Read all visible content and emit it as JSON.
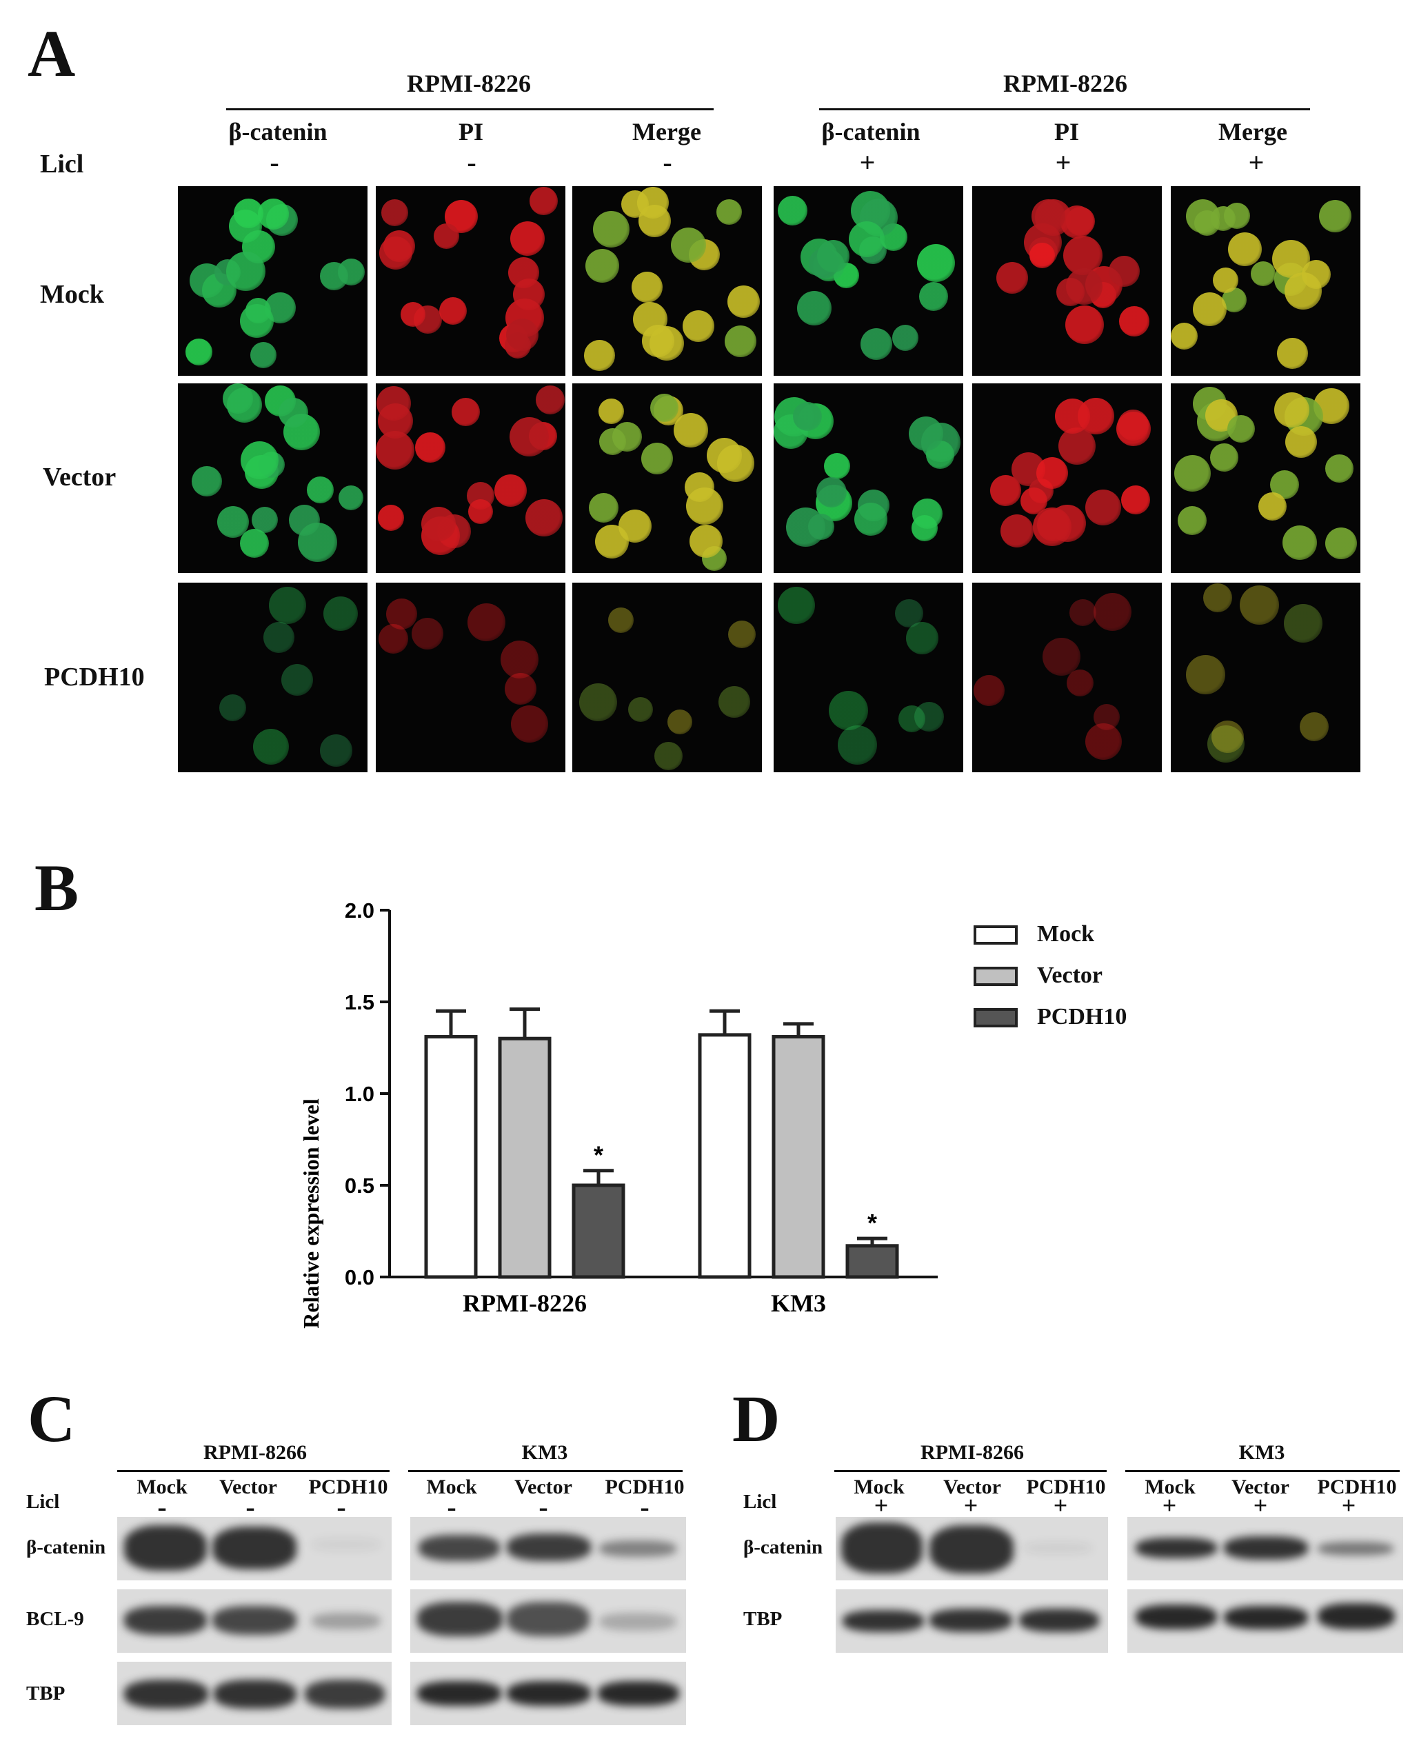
{
  "panelA": {
    "letter": "A",
    "group_left": "RPMI-8226",
    "group_right": "RPMI-8226",
    "columns": [
      "β-catenin",
      "PI",
      "Merge",
      "β-catenin",
      "PI",
      "Merge"
    ],
    "licl_label": "Licl",
    "licl_signs": [
      "-",
      "-",
      "-",
      "+",
      "+",
      "+"
    ],
    "rows": [
      "Mock",
      "Vector",
      "PCDH10"
    ]
  },
  "panelB": {
    "letter": "B",
    "legend": [
      "Mock",
      "Vector",
      "PCDH10"
    ],
    "significance_marker": "*"
  },
  "chart_data": {
    "type": "bar",
    "ylabel": "Relative expression level",
    "xlabel": "",
    "ylim": [
      0,
      2.0
    ],
    "yticks": [
      "0.0",
      "0.5",
      "1.0",
      "1.5",
      "2.0"
    ],
    "categories": [
      "RPMI-8226",
      "KM3"
    ],
    "series": [
      {
        "name": "Mock",
        "values": [
          1.31,
          1.32
        ],
        "errors": [
          0.14,
          0.13
        ],
        "color": "#ffffff"
      },
      {
        "name": "Vector",
        "values": [
          1.3,
          1.31
        ],
        "errors": [
          0.16,
          0.07
        ],
        "color": "#c0c0c0"
      },
      {
        "name": "PCDH10",
        "values": [
          0.5,
          0.17
        ],
        "errors": [
          0.08,
          0.04
        ],
        "color": "#555555"
      }
    ],
    "grid": false,
    "legend_position": "top-right"
  },
  "panelC": {
    "letter": "C",
    "left_title": "RPMI-8266",
    "right_title": "KM3",
    "lanes": [
      "Mock",
      "Vector",
      "PCDH10"
    ],
    "licl_label": "Licl",
    "signs": [
      "-",
      "-",
      "-"
    ],
    "rows": [
      "β-catenin",
      "BCL-9",
      "TBP"
    ]
  },
  "panelD": {
    "letter": "D",
    "left_title": "RPMI-8266",
    "right_title": "KM3",
    "lanes": [
      "Mock",
      "Vector",
      "PCDH10"
    ],
    "licl_label": "Licl",
    "signs": [
      "+",
      "+",
      "+"
    ],
    "rows": [
      "β-catenin",
      "TBP"
    ]
  }
}
